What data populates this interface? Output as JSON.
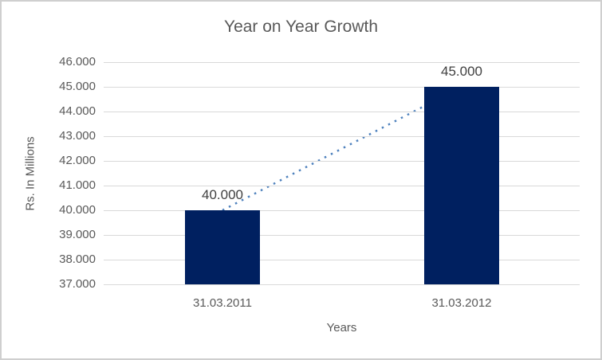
{
  "chart_data": {
    "type": "bar",
    "title": "Year on Year Growth",
    "xlabel": "Years",
    "ylabel": "Rs. In Millions",
    "categories": [
      "31.03.2011",
      "31.03.2012"
    ],
    "values": [
      40000,
      45000
    ],
    "value_labels": [
      "40.000",
      "45.000"
    ],
    "ylim": [
      37000,
      46000
    ],
    "ytick_step": 1000,
    "ytick_labels": [
      "37.000",
      "38.000",
      "39.000",
      "40.000",
      "41.000",
      "42.000",
      "43.000",
      "44.000",
      "45.000",
      "46.000"
    ],
    "grid": true,
    "legend": "none",
    "trendline": {
      "style": "dotted",
      "from": {
        "category": "31.03.2011",
        "value": 40000
      },
      "to": {
        "category": "31.03.2012",
        "value": 45000
      }
    },
    "colors": {
      "bar": "#002060",
      "trendline": "#4E81BD",
      "gridline": "#D9D9D9",
      "title_text": "#595959",
      "axis_text": "#595959",
      "data_label_text": "#404040",
      "background": "#FFFFFF",
      "frame_border": "#CFCFCF"
    }
  }
}
